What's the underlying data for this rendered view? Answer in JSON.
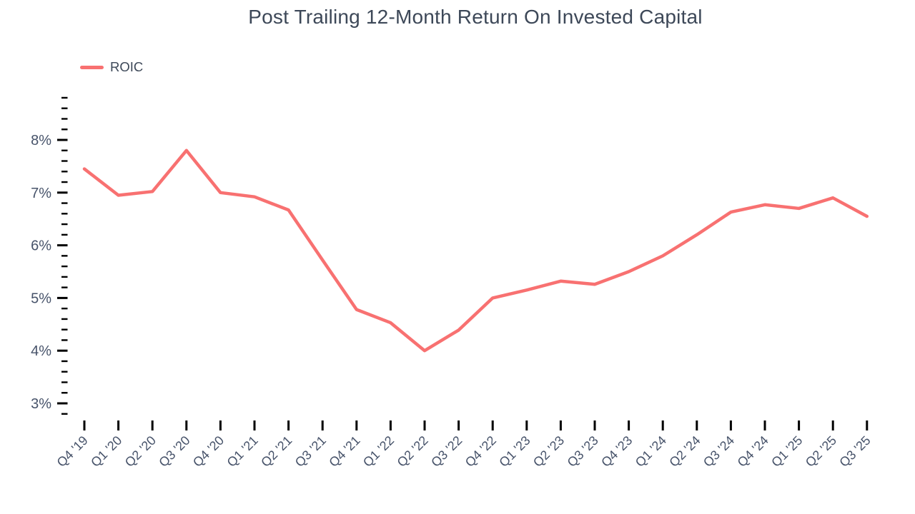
{
  "title": "Post Trailing 12-Month Return On Invested Capital",
  "colors": {
    "line": "#f87171",
    "text": "#3d4858",
    "axis_label": "#47536a",
    "tick": "#000000",
    "background": "#ffffff"
  },
  "chart_data": {
    "type": "line",
    "title": "Post Trailing 12-Month Return On Invested Capital",
    "categories": [
      "Q4 '19",
      "Q1 '20",
      "Q2 '20",
      "Q3 '20",
      "Q4 '20",
      "Q1 '21",
      "Q2 '21",
      "Q3 '21",
      "Q4 '21",
      "Q1 '22",
      "Q2 '22",
      "Q3 '22",
      "Q4 '22",
      "Q1 '23",
      "Q2 '23",
      "Q3 '23",
      "Q4 '23",
      "Q1 '24",
      "Q2 '24",
      "Q3 '24",
      "Q4 '24",
      "Q1 '25",
      "Q2 '25",
      "Q3 '25"
    ],
    "series": [
      {
        "name": "ROIC",
        "color": "#f87171",
        "values": [
          7.45,
          6.95,
          7.02,
          7.8,
          7.0,
          6.92,
          6.67,
          5.72,
          4.78,
          4.53,
          4.0,
          4.39,
          5.0,
          5.15,
          5.32,
          5.26,
          5.5,
          5.8,
          6.2,
          6.63,
          6.77,
          6.7,
          6.9,
          6.55
        ]
      }
    ],
    "xlabel": "",
    "ylabel": "",
    "y_unit": "%",
    "y_major_ticks": [
      3,
      4,
      5,
      6,
      7,
      8
    ],
    "y_minor_step": 0.2,
    "ylim": [
      2.8,
      8.8
    ],
    "grid": false,
    "legend_position": "top-left"
  }
}
